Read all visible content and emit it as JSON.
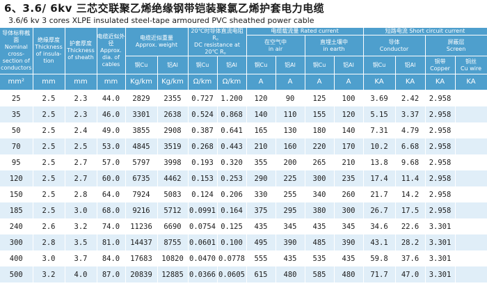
{
  "title_cn": "6、3.6/ 6kv  三芯交联聚乙烯绝缘钢带铠装聚氯乙烯护套电力电缆",
  "title_en": "3.6/6 kv 3 cores XLPE insulated steel-tape armoured PVC sheathed power cable",
  "header": {
    "section_cn": "导体标称截面",
    "section_en": "Nominal cross-section of conductors",
    "ins_cn": "绝缘厚度",
    "ins_en": "Thickness of insula-tion",
    "sheath_cn": "护套厚度",
    "sheath_en": "Thickness of sheath",
    "dia_cn": "电缆近似外径",
    "dia_en": "Approx. dia. of cables",
    "weight_cn": "电缆近似重量",
    "weight_en": "Approx. weight",
    "weight_cu": "铜Cu",
    "weight_al": "铝Al",
    "dcr_cn": "20℃时导体直流电阻R。",
    "dcr_en": "DC resistance at 20℃ R。",
    "dcr_cu": "铜Cu",
    "dcr_al": "铝Al",
    "rated_cn": "电缆载流量",
    "rated_en": "Rated current",
    "air_cn": "在空气中",
    "air_en": "in air",
    "earth_cn": "直埋土壤中",
    "earth_en": "in earth",
    "air_cu": "铜Cu",
    "air_al": "铝Al",
    "earth_cu": "铜Cu",
    "earth_al": "铝Al",
    "sc_cn": "短路电流",
    "sc_en": "Short circuit current",
    "cond_cn": "导体",
    "cond_en": "Conductor",
    "screen_cn": "屏蔽层",
    "screen_en": "Screen",
    "sc_cu": "铜Cu",
    "sc_al": "铝Al",
    "copper_cn": "铜带",
    "copper_en": "Copper",
    "cuwire_cn": "铜丝",
    "cuwire_en": "Cu wire"
  },
  "units": [
    "mm²",
    "mm",
    "mm",
    "mm",
    "Kg/km",
    "Kg/km",
    "Ω/km",
    "Ω/km",
    "A",
    "A",
    "A",
    "A",
    "KA",
    "KA",
    "KA",
    "KA"
  ],
  "rows": [
    [
      "25",
      "2.5",
      "2.3",
      "44.0",
      "2829",
      "2355",
      "0.727",
      "1.200",
      "120",
      "90",
      "125",
      "100",
      "3.69",
      "2.42",
      "2.958",
      ""
    ],
    [
      "35",
      "2.5",
      "2.3",
      "46.0",
      "3301",
      "2638",
      "0.524",
      "0.868",
      "140",
      "110",
      "155",
      "120",
      "5.15",
      "3.37",
      "2.958",
      ""
    ],
    [
      "50",
      "2.5",
      "2.4",
      "49.0",
      "3855",
      "2908",
      "0.387",
      "0.641",
      "165",
      "130",
      "180",
      "140",
      "7.31",
      "4.79",
      "2.958",
      ""
    ],
    [
      "70",
      "2.5",
      "2.5",
      "53.0",
      "4845",
      "3519",
      "0.268",
      "0.443",
      "210",
      "160",
      "220",
      "170",
      "10.2",
      "6.68",
      "2.958",
      ""
    ],
    [
      "95",
      "2.5",
      "2.7",
      "57.0",
      "5797",
      "3998",
      "0.193",
      "0.320",
      "355",
      "200",
      "265",
      "210",
      "13.8",
      "9.68",
      "2.958",
      ""
    ],
    [
      "120",
      "2.5",
      "2.7",
      "60.0",
      "6735",
      "4462",
      "0.153",
      "0.253",
      "290",
      "225",
      "300",
      "235",
      "17.4",
      "11.4",
      "2.958",
      ""
    ],
    [
      "150",
      "2.5",
      "2.8",
      "64.0",
      "7924",
      "5083",
      "0.124",
      "0.206",
      "330",
      "255",
      "340",
      "260",
      "21.7",
      "14.2",
      "2.958",
      ""
    ],
    [
      "185",
      "2.5",
      "3.0",
      "68.0",
      "9216",
      "5712",
      "0.0991",
      "0.164",
      "375",
      "295",
      "380",
      "300",
      "26.7",
      "17.5",
      "2.958",
      ""
    ],
    [
      "240",
      "2.6",
      "3.2",
      "74.0",
      "11236",
      "6690",
      "0.0754",
      "0.125",
      "435",
      "345",
      "435",
      "345",
      "34.6",
      "22.6",
      "3.301",
      ""
    ],
    [
      "300",
      "2.8",
      "3.5",
      "81.0",
      "14437",
      "8755",
      "0.0601",
      "0.100",
      "495",
      "390",
      "485",
      "390",
      "43.1",
      "28.2",
      "3.301",
      ""
    ],
    [
      "400",
      "3.0",
      "3.7",
      "84.0",
      "17683",
      "10820",
      "0.0470",
      "0.0778",
      "555",
      "435",
      "535",
      "435",
      "59.8",
      "37.6",
      "3.301",
      ""
    ],
    [
      "500",
      "3.2",
      "4.0",
      "87.0",
      "20839",
      "12885",
      "0.0366",
      "0.0605",
      "615",
      "480",
      "585",
      "480",
      "71.7",
      "47.0",
      "3.301",
      ""
    ]
  ],
  "colors": {
    "header_bg": "#4e9fcd",
    "row_alt": "#e0eef8"
  }
}
